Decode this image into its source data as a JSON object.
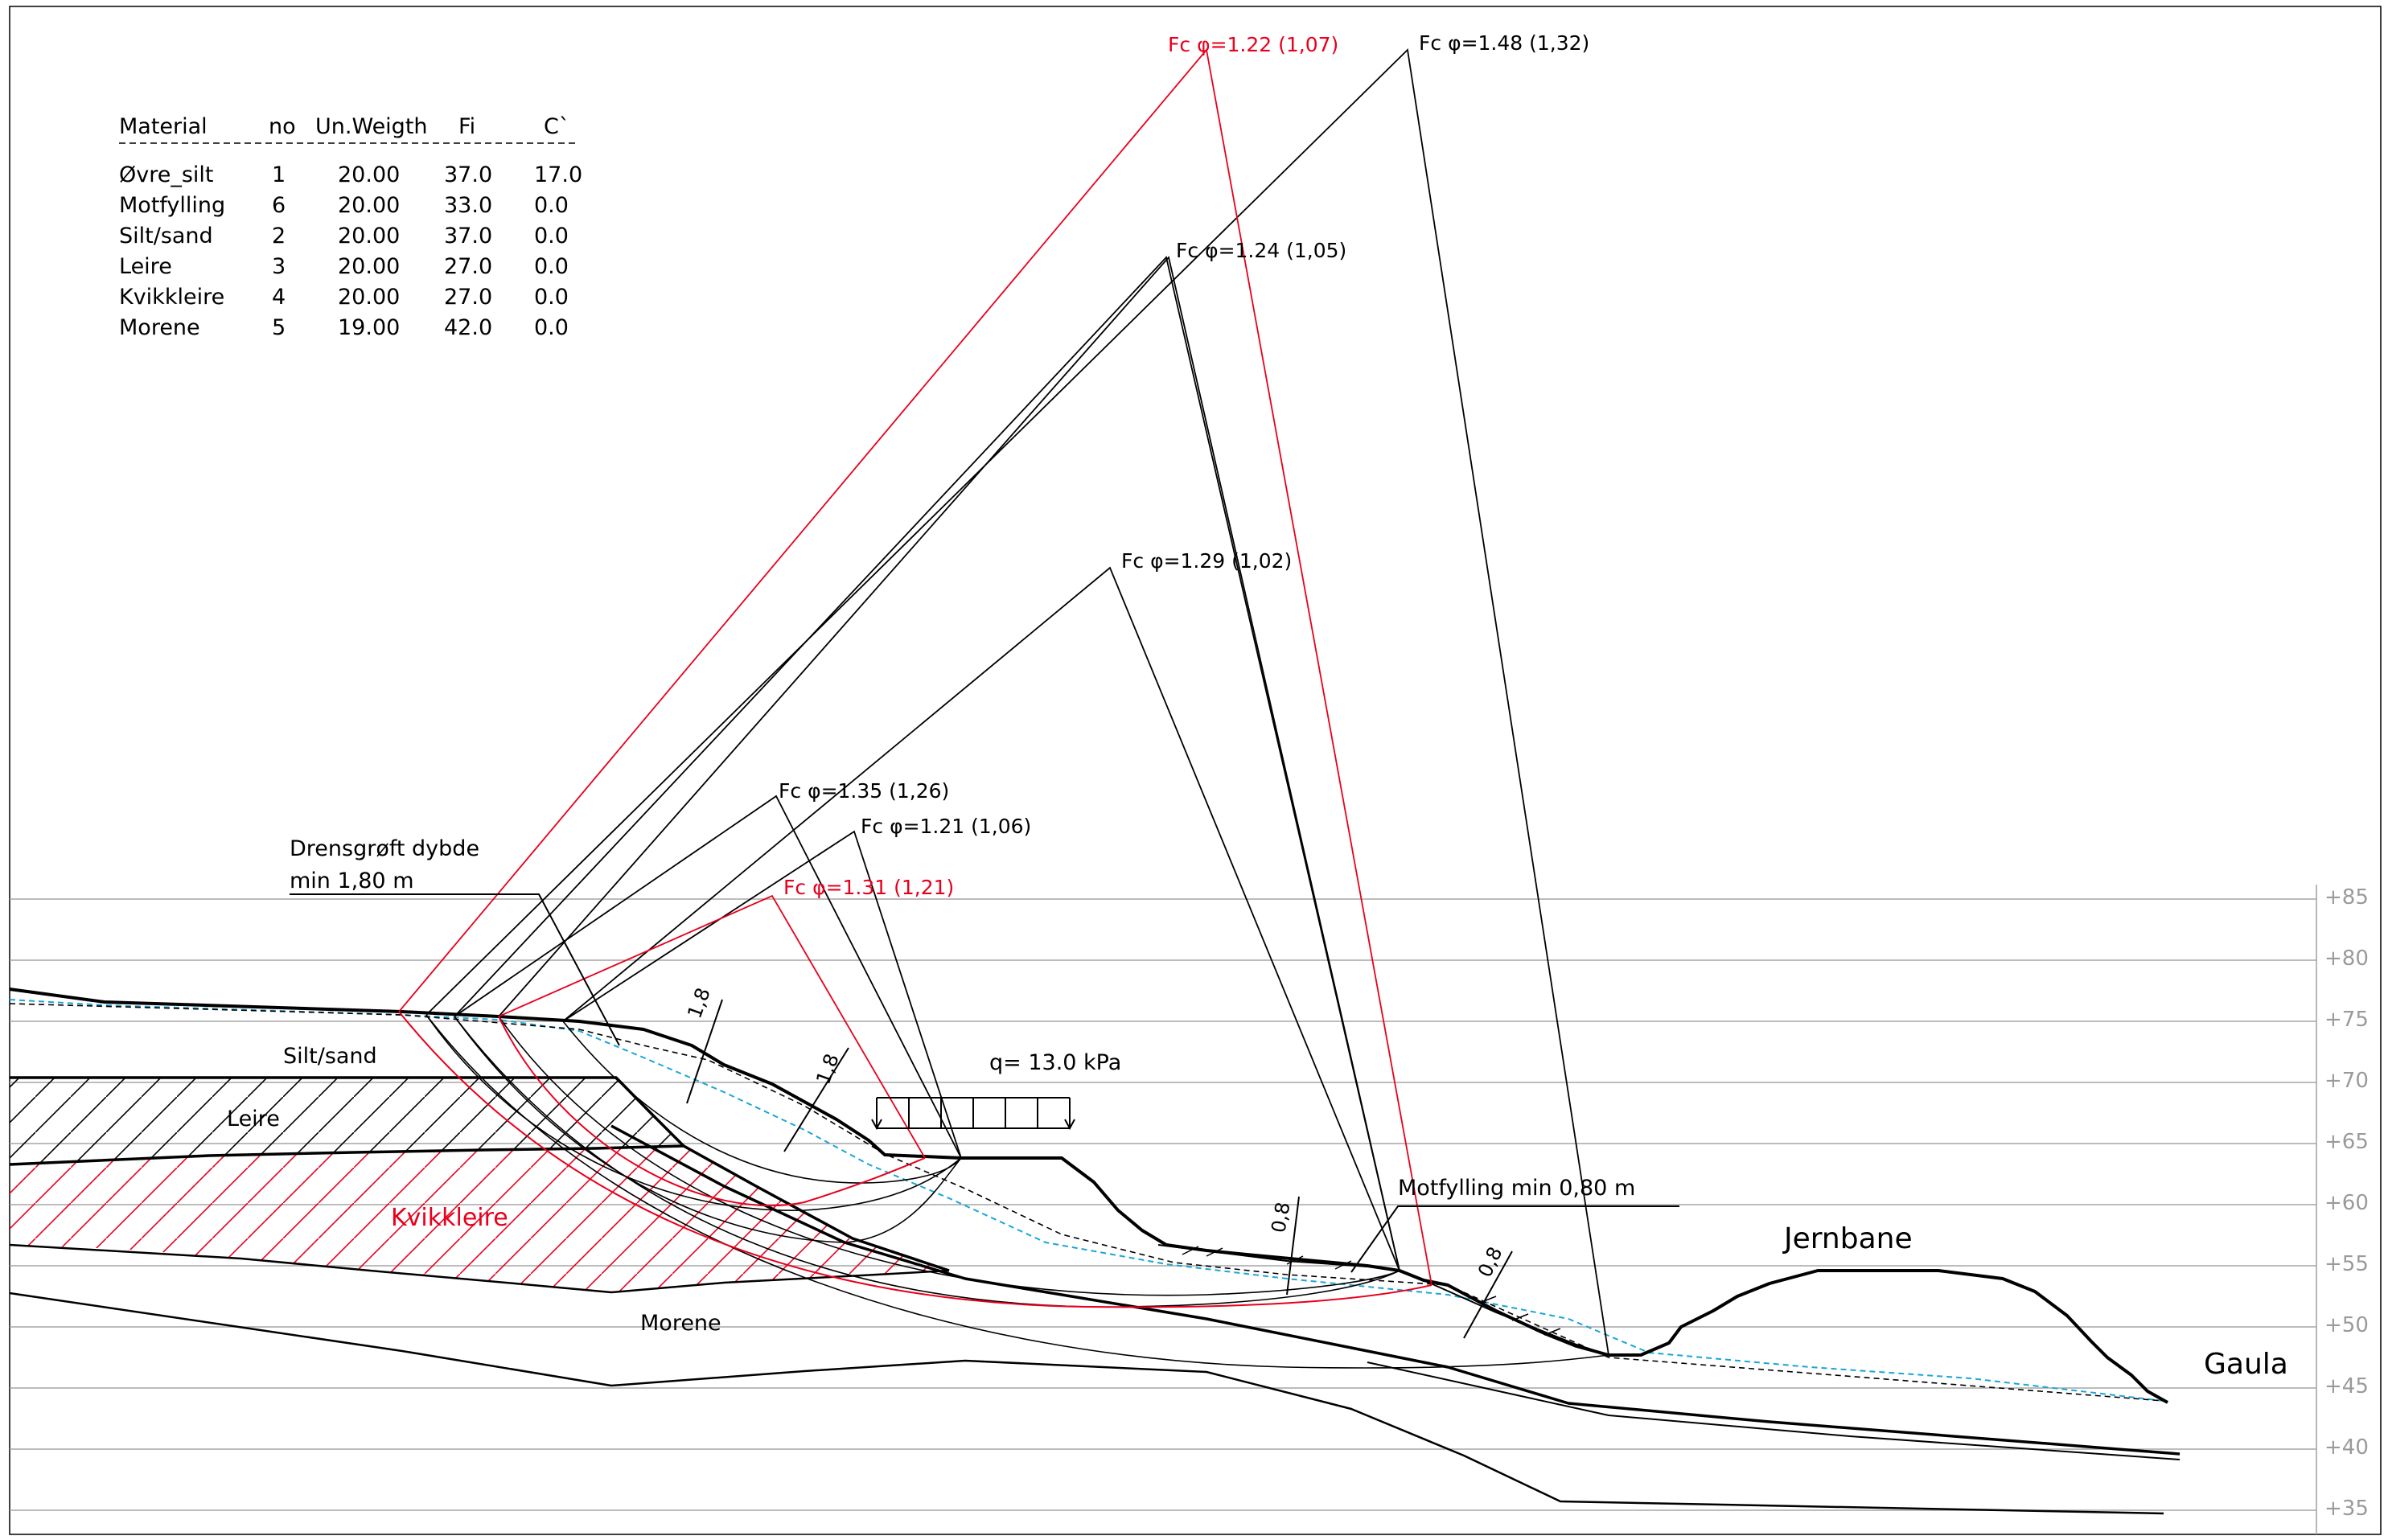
{
  "material_table": {
    "headers": [
      "Material",
      "no",
      "Un.Weigth",
      "Fi",
      "C`"
    ],
    "rows": [
      [
        "Øvre_silt",
        "1",
        "20.00",
        "37.0",
        "17.0"
      ],
      [
        "Motfylling",
        "6",
        "20.00",
        "33.0",
        "0.0"
      ],
      [
        "Silt/sand",
        "2",
        "20.00",
        "37.0",
        "0.0"
      ],
      [
        "Leire",
        "3",
        "20.00",
        "27.0",
        "0.0"
      ],
      [
        "Kvikkleire",
        "4",
        "20.00",
        "27.0",
        "0.0"
      ],
      [
        "Morene",
        "5",
        "19.00",
        "42.0",
        "0.0"
      ]
    ]
  },
  "elevation_labels": [
    "+85",
    "+80",
    "+75",
    "+70",
    "+65",
    "+60",
    "+55",
    "+50",
    "+45",
    "+40",
    "+35"
  ],
  "factor_labels": [
    {
      "id": "fc1",
      "text": "Fc φ=1.22  (1,07)",
      "color": "#e8001c"
    },
    {
      "id": "fc2",
      "text": "Fc φ=1.48  (1,32)",
      "color": "#000000"
    },
    {
      "id": "fc3",
      "text": "Fc φ=1.24  (1,05)",
      "color": "#000000"
    },
    {
      "id": "fc4",
      "text": "Fc φ=1.29  (1,02)",
      "color": "#000000"
    },
    {
      "id": "fc5",
      "text": "Fc φ=1.35  (1,26)",
      "color": "#000000"
    },
    {
      "id": "fc6",
      "text": "Fc φ=1.21  (1,06)",
      "color": "#000000"
    },
    {
      "id": "fc7",
      "text": "Fc φ=1.31  (1,21)",
      "color": "#e8001c"
    }
  ],
  "annotations": {
    "drensgroft_line1": "Drensgrøft dybde",
    "drensgroft_line2": "min 1,80 m",
    "load": "q=  13.0  kPa",
    "motfylling": "Motfylling min 0,80 m",
    "dim_1": "1,8",
    "dim_2": "1,8",
    "dim_3": "0,8",
    "dim_4": "0,8"
  },
  "layer_labels": {
    "silt_sand": "Silt/sand",
    "leire": "Leire",
    "kvikkleire": "Kvikkleire",
    "morene": "Morene",
    "jernbane": "Jernbane",
    "gaula": "Gaula"
  },
  "colors": {
    "critical": "#e8001c",
    "line": "#000000",
    "grid": "#a6a6a6",
    "water": "#1aa6d6"
  }
}
